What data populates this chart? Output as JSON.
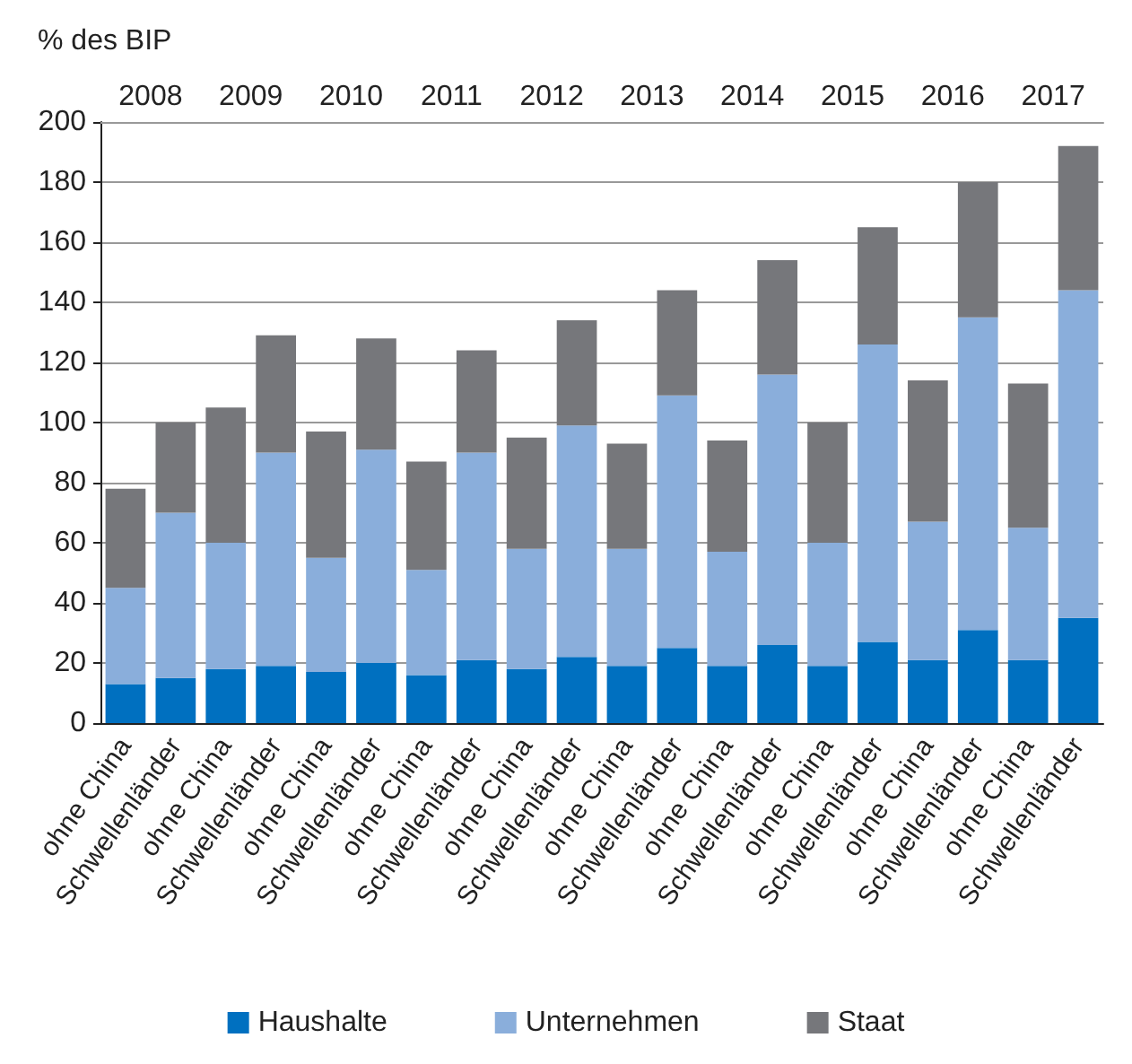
{
  "chart_data": {
    "type": "bar",
    "stacked": true,
    "ylabel": "% des BIP",
    "categories": [
      "ohne China",
      "Schwellenländer",
      "ohne China",
      "Schwellenländer",
      "ohne China",
      "Schwellenländer",
      "ohne China",
      "Schwellenländer",
      "ohne China",
      "Schwellenländer",
      "ohne China",
      "Schwellenländer",
      "ohne China",
      "Schwellenländer",
      "ohne China",
      "Schwellenländer",
      "ohne China",
      "Schwellenländer",
      "ohne China",
      "Schwellenländer"
    ],
    "annotations": [
      "2008",
      "2009",
      "2010",
      "2011",
      "2012",
      "2013",
      "2014",
      "2015",
      "2016",
      "2017"
    ],
    "series": [
      {
        "name": "Haushalte",
        "color": "#0070c0",
        "values": [
          13,
          15,
          18,
          19,
          17,
          20,
          16,
          21,
          18,
          22,
          19,
          25,
          19,
          26,
          19,
          27,
          21,
          31,
          21,
          35
        ]
      },
      {
        "name": "Unternehmen",
        "color": "#8aaedb",
        "values": [
          32,
          55,
          42,
          71,
          38,
          71,
          35,
          69,
          40,
          77,
          39,
          84,
          38,
          90,
          41,
          99,
          46,
          104,
          44,
          109
        ]
      },
      {
        "name": "Staat",
        "color": "#76777b",
        "values": [
          33,
          30,
          45,
          39,
          42,
          37,
          36,
          34,
          37,
          35,
          35,
          35,
          37,
          38,
          40,
          39,
          47,
          45,
          48,
          48
        ]
      }
    ],
    "ylim": [
      0,
      200
    ],
    "yticks": [
      0,
      20,
      40,
      60,
      80,
      100,
      120,
      140,
      160,
      180,
      200
    ],
    "grid": "y",
    "legend": "bottom"
  }
}
